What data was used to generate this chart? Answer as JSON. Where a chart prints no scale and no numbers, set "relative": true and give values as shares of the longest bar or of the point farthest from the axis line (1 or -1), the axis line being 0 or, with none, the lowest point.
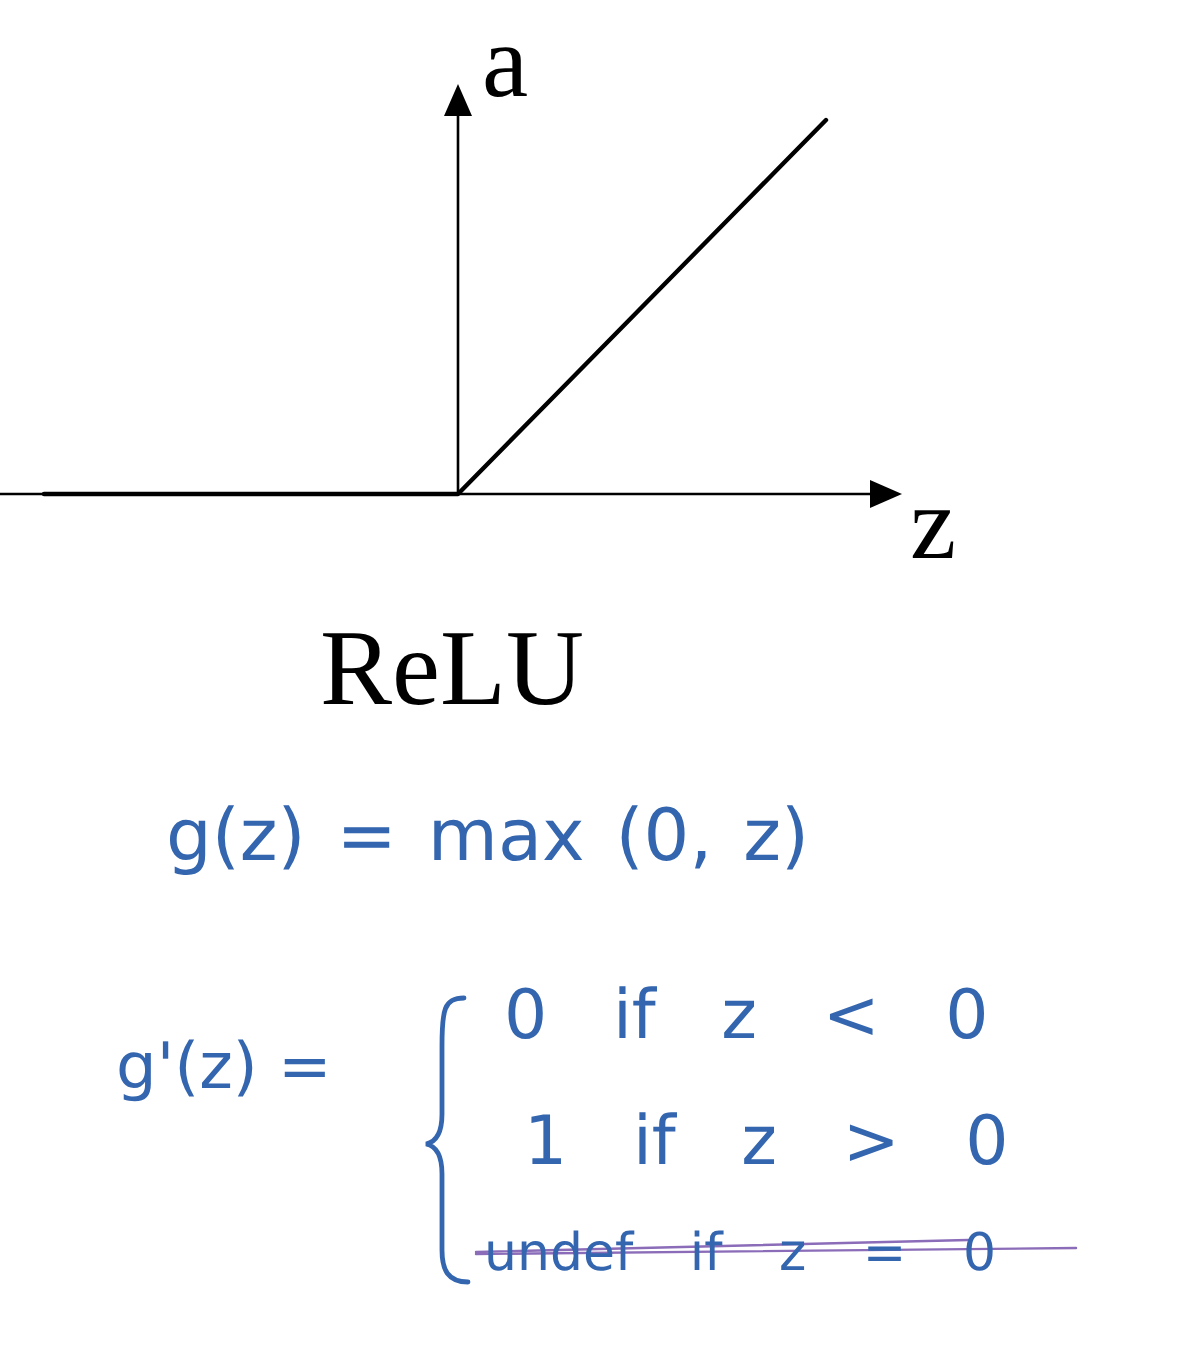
{
  "chart_data": {
    "type": "line",
    "title": "ReLU",
    "xlabel": "z",
    "ylabel": "a",
    "categories": [
      null,
      null,
      null,
      null,
      null,
      null,
      null,
      null,
      null,
      null,
      null,
      null,
      null,
      null,
      null,
      null,
      null,
      null
    ],
    "values": [
      0,
      0,
      0,
      0,
      0,
      0,
      0,
      0,
      0,
      0,
      0.125,
      0.25,
      0.375,
      0.5,
      0.625,
      0.75,
      0.875,
      1
    ],
    "color": "#000000",
    "relative": true,
    "annotations": [
      "g(z) = max (0, z)",
      "g'(z) =",
      "0 if z < 0",
      "1 if z > 0",
      "undef if z = 0"
    ]
  }
}
